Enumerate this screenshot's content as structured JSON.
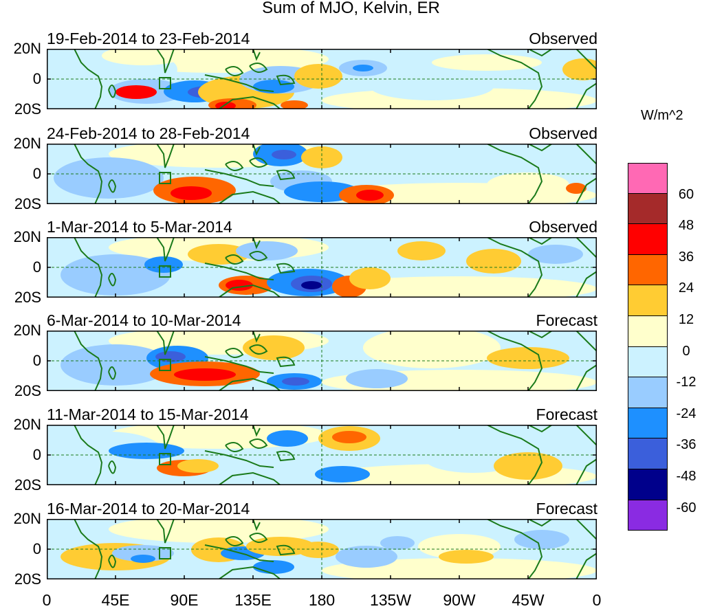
{
  "title": "Sum of MJO, Kelvin, ER",
  "units": "W/m^2",
  "lat_labels": [
    "20N",
    "0",
    "20S"
  ],
  "lon_labels": [
    "0",
    "45E",
    "90E",
    "135E",
    "180",
    "135W",
    "90W",
    "45W",
    "0"
  ],
  "panels": [
    {
      "date_range": "19-Feb-2014 to 23-Feb-2014",
      "status": "Observed"
    },
    {
      "date_range": "24-Feb-2014 to 28-Feb-2014",
      "status": "Observed"
    },
    {
      "date_range": "1-Mar-2014 to 5-Mar-2014",
      "status": "Observed"
    },
    {
      "date_range": "6-Mar-2014 to 10-Mar-2014",
      "status": "Forecast"
    },
    {
      "date_range": "11-Mar-2014 to 15-Mar-2014",
      "status": "Forecast"
    },
    {
      "date_range": "16-Mar-2014 to 20-Mar-2014",
      "status": "Forecast"
    }
  ],
  "colorbar": {
    "colors": [
      "#ff69b4",
      "#a52a2a",
      "#ff0000",
      "#ff6600",
      "#ffcc33",
      "#ffffcc",
      "#ccf2ff",
      "#99ccff",
      "#1e90ff",
      "#3b5fdb",
      "#00008b",
      "#8a2be2"
    ],
    "labels": [
      "60",
      "48",
      "36",
      "24",
      "12",
      "0",
      "-12",
      "-24",
      "-36",
      "-48",
      "-60"
    ]
  },
  "palette": {
    "land_outline": "#1a7a1a",
    "pos_light": "#ffffcc",
    "pos_12": "#ffcc33",
    "pos_24": "#ff6600",
    "pos_36": "#ff0000",
    "neg_light": "#ccf2ff",
    "neg_12": "#99ccff",
    "neg_24": "#1e90ff",
    "neg_36": "#3b5fdb",
    "neg_48": "#00008b"
  }
}
